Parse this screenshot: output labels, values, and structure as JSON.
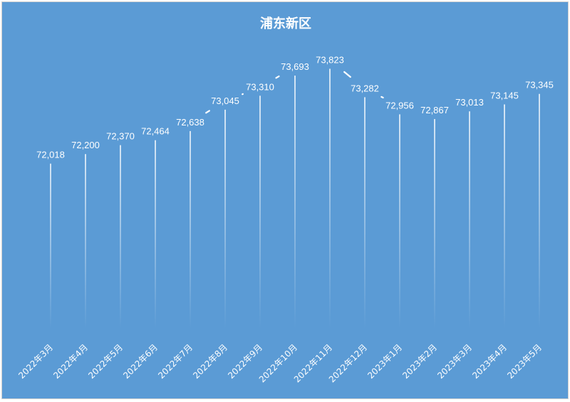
{
  "chart_data": {
    "type": "line",
    "title": "浦东新区",
    "categories": [
      "2022年3月",
      "2022年4月",
      "2022年5月",
      "2022年6月",
      "2022年7月",
      "2022年8月",
      "2022年9月",
      "2022年10月",
      "2022年11月",
      "2022年12月",
      "2023年1月",
      "2023年2月",
      "2023年3月",
      "2023年4月",
      "2023年5月"
    ],
    "values": [
      72018,
      72200,
      72370,
      72464,
      72638,
      73045,
      73310,
      73693,
      73823,
      73282,
      72956,
      72867,
      73013,
      73145,
      73345
    ],
    "data_labels": [
      "72,018",
      "72,200",
      "72,370",
      "72,464",
      "72,638",
      "73,045",
      "73,310",
      "73,693",
      "73,823",
      "73,282",
      "72,956",
      "72,867",
      "73,013",
      "73,145",
      "73,345"
    ],
    "xlabel": "",
    "ylabel": "",
    "ylim": [
      68880,
      74250
    ],
    "grid": false,
    "legend": "none",
    "drop_lines": true,
    "background_color": "#5b9bd5",
    "line_color": "#ffffff"
  }
}
